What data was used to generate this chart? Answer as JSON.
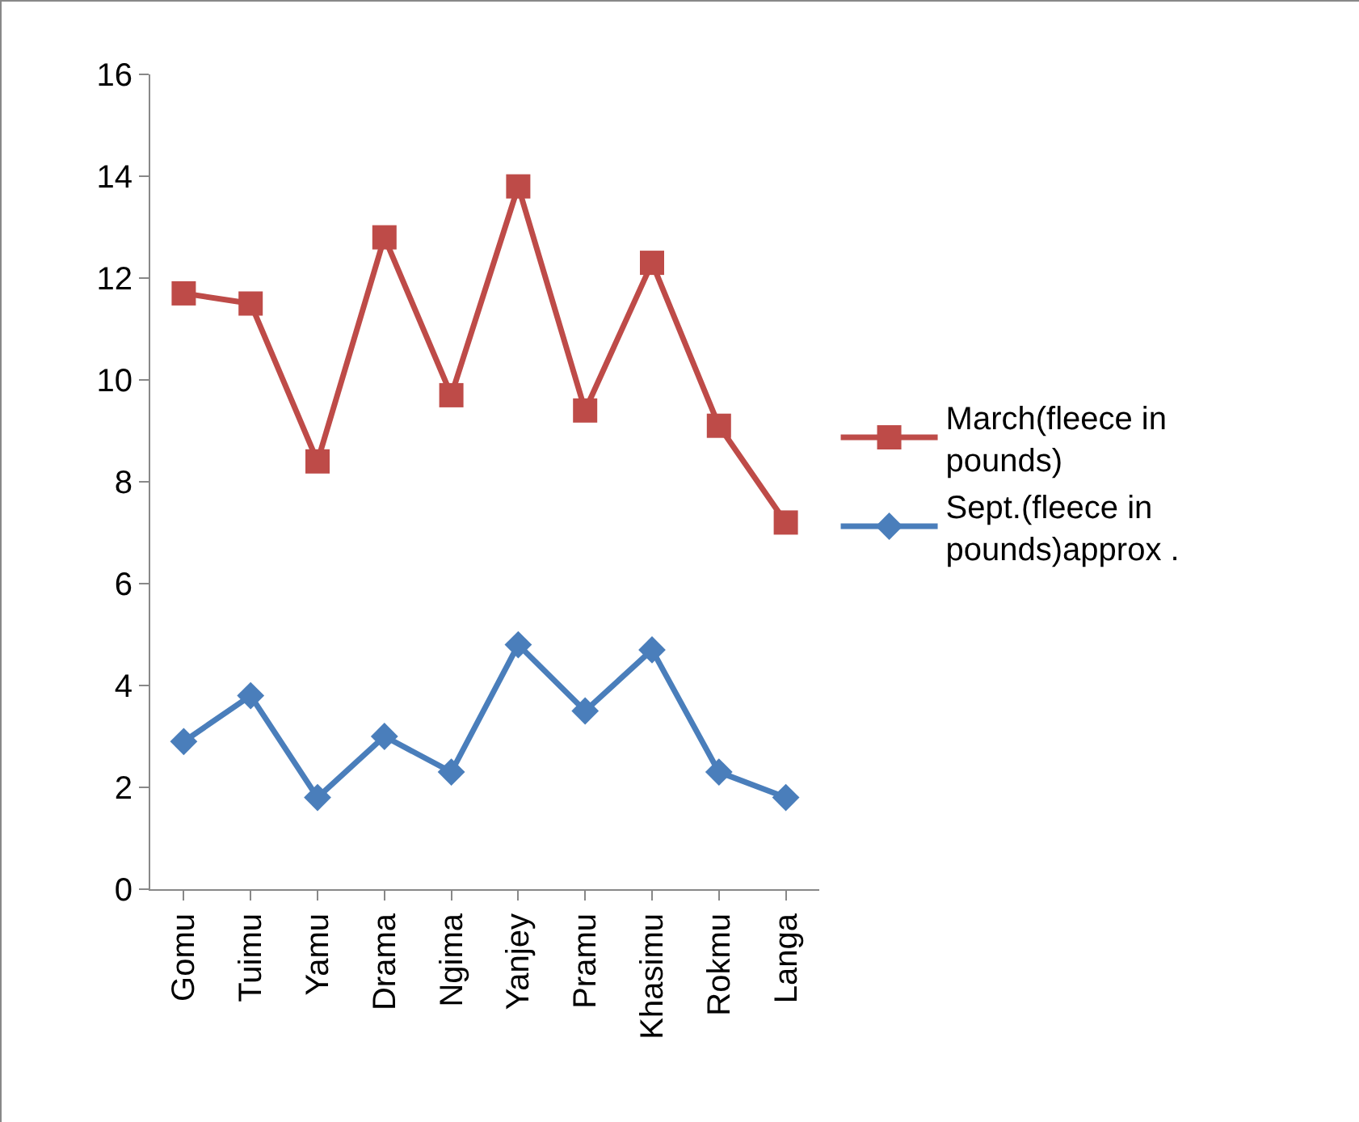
{
  "chart_data": {
    "type": "line",
    "categories": [
      "Gomu",
      "Tuimu",
      "Yamu",
      "Drama",
      "Ngima",
      "Yanjey",
      "Pramu",
      "Khasimu",
      "Rokmu",
      "Langa"
    ],
    "series": [
      {
        "name": "March(fleece in pounds)",
        "color": "#be4b48",
        "marker": "square",
        "values": [
          11.7,
          11.5,
          8.4,
          12.8,
          9.7,
          13.8,
          9.4,
          12.3,
          9.1,
          7.2
        ]
      },
      {
        "name": "Sept.(fleece in pounds)approx .",
        "color": "#4a7ebb",
        "marker": "diamond",
        "values": [
          2.9,
          3.8,
          1.8,
          3.0,
          2.3,
          4.8,
          3.5,
          4.7,
          2.3,
          1.8
        ]
      }
    ],
    "ylim": [
      0,
      16
    ],
    "yticks": [
      0,
      2,
      4,
      6,
      8,
      10,
      12,
      14,
      16
    ],
    "grid": false,
    "legend": "right",
    "line_style": "solid"
  }
}
